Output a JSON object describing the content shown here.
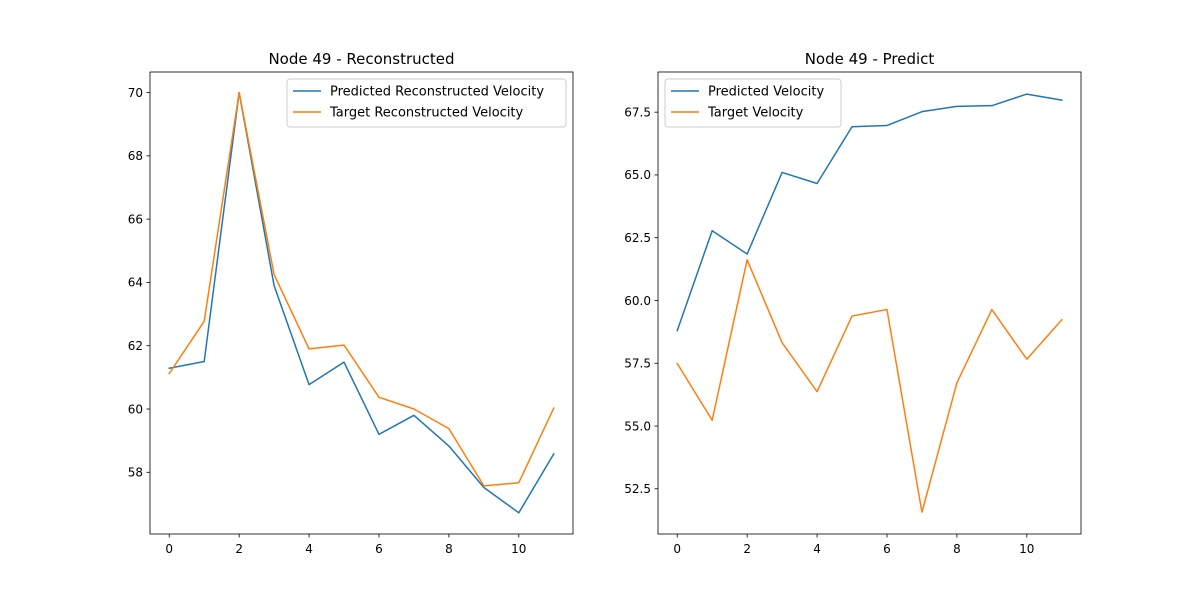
{
  "chart_data": [
    {
      "type": "line",
      "title": "Node 49 - Reconstructed",
      "xlabel": "",
      "ylabel": "",
      "x": [
        0,
        1,
        2,
        3,
        4,
        5,
        6,
        7,
        8,
        9,
        10,
        11
      ],
      "xlim": [
        -0.55,
        11.55
      ],
      "ylim": [
        56.05,
        70.65
      ],
      "xticks": [
        0,
        2,
        4,
        6,
        8,
        10
      ],
      "yticks": [
        58,
        60,
        62,
        64,
        66,
        68,
        70
      ],
      "grid": false,
      "legend_position": "top-right",
      "series": [
        {
          "name": "Predicted Reconstructed Velocity",
          "color": "#1f77b4",
          "values": [
            61.29,
            61.5,
            70.0,
            63.9,
            60.77,
            61.48,
            59.2,
            59.8,
            58.83,
            57.52,
            56.72,
            58.58
          ]
        },
        {
          "name": "Target Reconstructed Velocity",
          "color": "#ff7f0e",
          "values": [
            61.12,
            62.77,
            70.0,
            64.25,
            61.9,
            62.02,
            60.37,
            60.0,
            59.38,
            57.57,
            57.67,
            60.03
          ]
        }
      ]
    },
    {
      "type": "line",
      "title": "Node 49 - Predict",
      "xlabel": "",
      "ylabel": "",
      "x": [
        0,
        1,
        2,
        3,
        4,
        5,
        6,
        7,
        8,
        9,
        10,
        11
      ],
      "xlim": [
        -0.55,
        11.55
      ],
      "ylim": [
        50.7,
        69.1
      ],
      "xticks": [
        0,
        2,
        4,
        6,
        8,
        10
      ],
      "yticks": [
        52.5,
        55.0,
        57.5,
        60.0,
        62.5,
        65.0,
        67.5
      ],
      "ytick_labels": [
        "52.5",
        "55.0",
        "57.5",
        "60.0",
        "62.5",
        "65.0",
        "67.5"
      ],
      "grid": false,
      "legend_position": "top-left",
      "series": [
        {
          "name": "Predicted Velocity",
          "color": "#1f77b4",
          "values": [
            58.8,
            62.78,
            61.85,
            65.1,
            64.66,
            66.92,
            66.97,
            67.52,
            67.73,
            67.76,
            68.22,
            67.98
          ]
        },
        {
          "name": "Target Velocity",
          "color": "#ff7f0e",
          "values": [
            57.49,
            55.23,
            61.62,
            58.32,
            56.37,
            59.38,
            59.64,
            51.57,
            56.72,
            59.64,
            57.66,
            59.23
          ]
        }
      ]
    }
  ]
}
